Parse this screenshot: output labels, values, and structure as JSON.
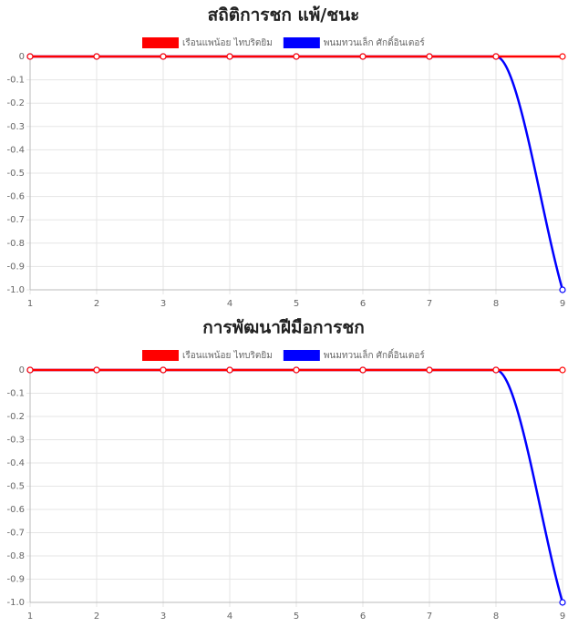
{
  "chart_data": [
    {
      "type": "line",
      "title": "สถิติการชก แพ้/ชนะ",
      "x": [
        1,
        2,
        3,
        4,
        5,
        6,
        7,
        8,
        9
      ],
      "xlim": [
        1,
        9
      ],
      "xticks": [
        1,
        2,
        3,
        4,
        5,
        6,
        7,
        8,
        9
      ],
      "ylim": [
        -1,
        0
      ],
      "yticks": [
        0,
        -0.1,
        -0.2,
        -0.3,
        -0.4,
        -0.5,
        -0.6,
        -0.7,
        -0.8,
        -0.9,
        {
          "value": -1,
          "label": "-1.0"
        }
      ],
      "grid": true,
      "legend": "top",
      "series": [
        {
          "name": "เรือนแพน้อย ไทบริตยิม",
          "color": "#ff0000",
          "values": [
            0,
            0,
            0,
            0,
            0,
            0,
            0,
            0,
            0
          ]
        },
        {
          "name": "พนมทวนเล็ก ศักดิ์อินเตอร์",
          "color": "#0000ff",
          "values": [
            0,
            0,
            0,
            0,
            0,
            0,
            0,
            0,
            -1
          ]
        }
      ]
    },
    {
      "type": "line",
      "title": "การพัฒนาฝีมือการชก",
      "x": [
        1,
        2,
        3,
        4,
        5,
        6,
        7,
        8,
        9
      ],
      "xlim": [
        1,
        9
      ],
      "xticks": [
        1,
        2,
        3,
        4,
        5,
        6,
        7,
        8,
        9
      ],
      "ylim": [
        -1,
        0
      ],
      "yticks": [
        0,
        -0.1,
        -0.2,
        -0.3,
        -0.4,
        -0.5,
        -0.6,
        -0.7,
        -0.8,
        -0.9,
        {
          "value": -1,
          "label": "-1.0"
        }
      ],
      "grid": true,
      "legend": "top",
      "series": [
        {
          "name": "เรือนแพน้อย ไทบริตยิม",
          "color": "#ff0000",
          "values": [
            0,
            0,
            0,
            0,
            0,
            0,
            0,
            0,
            0
          ]
        },
        {
          "name": "พนมทวนเล็ก ศักดิ์อินเตอร์",
          "color": "#0000ff",
          "values": [
            0,
            0,
            0,
            0,
            0,
            0,
            0,
            0,
            -1
          ]
        }
      ]
    }
  ]
}
